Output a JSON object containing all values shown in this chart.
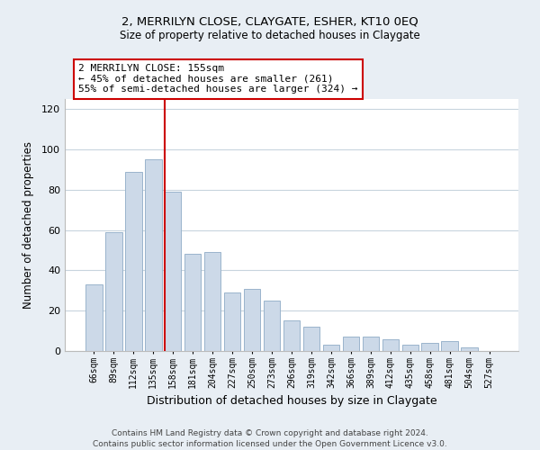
{
  "title": "2, MERRILYN CLOSE, CLAYGATE, ESHER, KT10 0EQ",
  "subtitle": "Size of property relative to detached houses in Claygate",
  "xlabel": "Distribution of detached houses by size in Claygate",
  "ylabel": "Number of detached properties",
  "bar_color": "#ccd9e8",
  "bar_edge_color": "#9ab4cc",
  "categories": [
    "66sqm",
    "89sqm",
    "112sqm",
    "135sqm",
    "158sqm",
    "181sqm",
    "204sqm",
    "227sqm",
    "250sqm",
    "273sqm",
    "296sqm",
    "319sqm",
    "342sqm",
    "366sqm",
    "389sqm",
    "412sqm",
    "435sqm",
    "458sqm",
    "481sqm",
    "504sqm",
    "527sqm"
  ],
  "values": [
    33,
    59,
    89,
    95,
    79,
    48,
    49,
    29,
    31,
    25,
    15,
    12,
    3,
    7,
    7,
    6,
    3,
    4,
    5,
    2,
    0
  ],
  "ylim": [
    0,
    125
  ],
  "yticks": [
    0,
    20,
    40,
    60,
    80,
    100,
    120
  ],
  "vline_index": 4,
  "vline_color": "#cc0000",
  "annotation_line1": "2 MERRILYN CLOSE: 155sqm",
  "annotation_line2": "← 45% of detached houses are smaller (261)",
  "annotation_line3": "55% of semi-detached houses are larger (324) →",
  "footer_line1": "Contains HM Land Registry data © Crown copyright and database right 2024.",
  "footer_line2": "Contains public sector information licensed under the Open Government Licence v3.0.",
  "background_color": "#e8eef4",
  "plot_background": "#ffffff",
  "grid_color": "#c8d4de"
}
